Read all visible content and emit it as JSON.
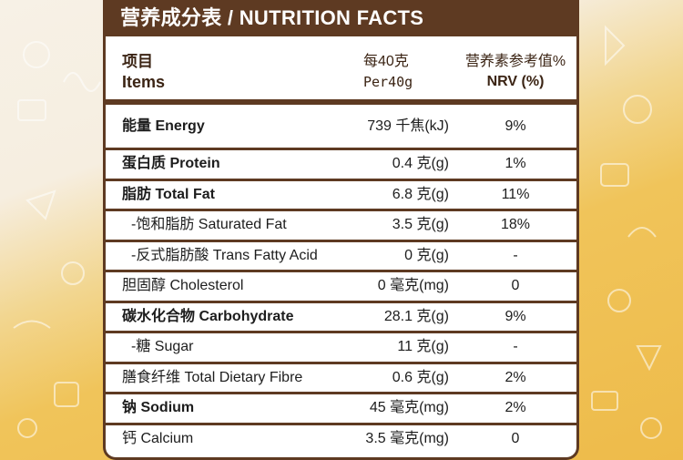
{
  "title": "营养成分表 / NUTRITION FACTS",
  "header": {
    "item_cn": "项目",
    "item_en": "Items",
    "amount_cn": "每40克",
    "amount_en": "Per40g",
    "nrv_cn": "营养素参考值%",
    "nrv_en": "NRV (%)"
  },
  "rows": [
    {
      "cn": "能量",
      "en": "Energy",
      "amount": "739 千焦(kJ)",
      "nrv": "9%",
      "bold": true,
      "indent": false
    },
    {
      "cn": "蛋白质",
      "en": "Protein",
      "amount": "0.4 克(g)",
      "nrv": "1%",
      "bold": true,
      "indent": false
    },
    {
      "cn": "脂肪",
      "en": "Total Fat",
      "amount": "6.8 克(g)",
      "nrv": "11%",
      "bold": true,
      "indent": false
    },
    {
      "cn": "-饱和脂肪",
      "en": "Saturated Fat",
      "amount": "3.5 克(g)",
      "nrv": "18%",
      "bold": false,
      "indent": true
    },
    {
      "cn": "-反式脂肪酸",
      "en": "Trans Fatty Acid",
      "amount": "0 克(g)",
      "nrv": "-",
      "bold": false,
      "indent": true
    },
    {
      "cn": "胆固醇",
      "en": "Cholesterol",
      "amount": "0 毫克(mg)",
      "nrv": "0",
      "bold": false,
      "indent": false
    },
    {
      "cn": "碳水化合物",
      "en": "Carbohydrate",
      "amount": "28.1 克(g)",
      "nrv": "9%",
      "bold": true,
      "indent": false
    },
    {
      "cn": "-糖",
      "en": "Sugar",
      "amount": "11 克(g)",
      "nrv": "-",
      "bold": false,
      "indent": true
    },
    {
      "cn": "膳食纤维",
      "en": "Total Dietary Fibre",
      "amount": "0.6 克(g)",
      "nrv": "2%",
      "bold": false,
      "indent": false
    },
    {
      "cn": "钠",
      "en": "Sodium",
      "amount": "45 毫克(mg)",
      "nrv": "2%",
      "bold": true,
      "indent": false
    },
    {
      "cn": "钙",
      "en": "Calcium",
      "amount": "3.5 毫克(mg)",
      "nrv": "0",
      "bold": false,
      "indent": false
    }
  ],
  "colors": {
    "brown": "#5e3a22",
    "background_yellow": "#f0c45a",
    "background_cream": "#f6eee0"
  },
  "icons": [
    "food-doodle-pattern"
  ]
}
